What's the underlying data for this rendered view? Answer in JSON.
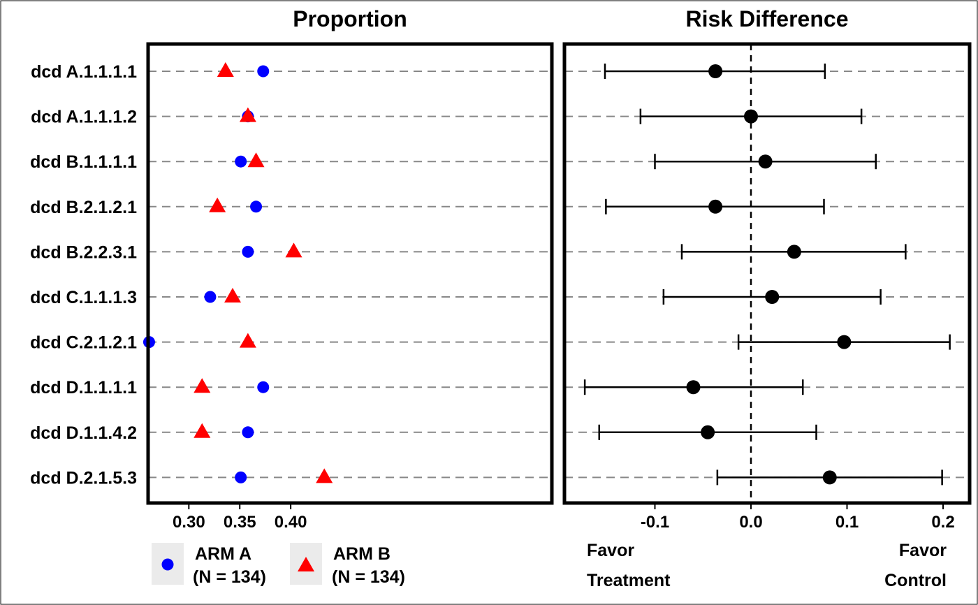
{
  "chart_data": [
    {
      "type": "scatter",
      "title": "Proportion",
      "categories": [
        "dcd A.1.1.1.1",
        "dcd A.1.1.1.2",
        "dcd B.1.1.1.1",
        "dcd B.2.1.2.1",
        "dcd B.2.2.3.1",
        "dcd C.1.1.1.3",
        "dcd C.2.1.2.1",
        "dcd D.1.1.1.1",
        "dcd D.1.1.4.2",
        "dcd D.2.1.5.3"
      ],
      "xlim": [
        0.26,
        0.435
      ],
      "xticks": [
        0.3,
        0.35,
        0.4
      ],
      "xtick_labels": [
        "0.30",
        "0.35",
        "0.40"
      ],
      "grid": true,
      "legend_position": "bottom",
      "series": [
        {
          "name": "ARM A",
          "n_label": "(N = 134)",
          "marker": "circle",
          "color": "#0000ff",
          "values": [
            0.373,
            0.358,
            0.351,
            0.366,
            0.358,
            0.321,
            0.261,
            0.373,
            0.358,
            0.351
          ]
        },
        {
          "name": "ARM B",
          "n_label": "(N = 134)",
          "marker": "triangle",
          "color": "#ff0000",
          "values": [
            0.336,
            0.358,
            0.366,
            0.328,
            0.403,
            0.343,
            0.358,
            0.313,
            0.313,
            0.433
          ]
        }
      ]
    },
    {
      "type": "errorbar",
      "title": "Risk Difference",
      "categories": [
        "dcd A.1.1.1.1",
        "dcd A.1.1.1.2",
        "dcd B.1.1.1.1",
        "dcd B.2.1.2.1",
        "dcd B.2.2.3.1",
        "dcd C.1.1.1.3",
        "dcd C.2.1.2.1",
        "dcd D.1.1.1.1",
        "dcd D.1.1.4.2",
        "dcd D.2.1.5.3"
      ],
      "xlim": [
        -0.19,
        0.225
      ],
      "xticks": [
        -0.1,
        0.0,
        0.1,
        0.2
      ],
      "xtick_labels": [
        "-0.1",
        "0.0",
        "0.1",
        "0.2"
      ],
      "reference_line": 0.0,
      "grid": true,
      "color": "#000000",
      "estimate": [
        -0.037,
        0.0,
        0.015,
        -0.037,
        0.045,
        0.022,
        0.097,
        -0.06,
        -0.045,
        0.082
      ],
      "lower": [
        -0.152,
        -0.115,
        -0.1,
        -0.151,
        -0.072,
        -0.091,
        -0.013,
        -0.173,
        -0.158,
        -0.035
      ],
      "upper": [
        0.077,
        0.115,
        0.13,
        0.076,
        0.161,
        0.135,
        0.207,
        0.054,
        0.068,
        0.199
      ],
      "left_annotation": [
        "Favor",
        "Treatment"
      ],
      "right_annotation": [
        "Favor",
        "Control"
      ]
    }
  ]
}
